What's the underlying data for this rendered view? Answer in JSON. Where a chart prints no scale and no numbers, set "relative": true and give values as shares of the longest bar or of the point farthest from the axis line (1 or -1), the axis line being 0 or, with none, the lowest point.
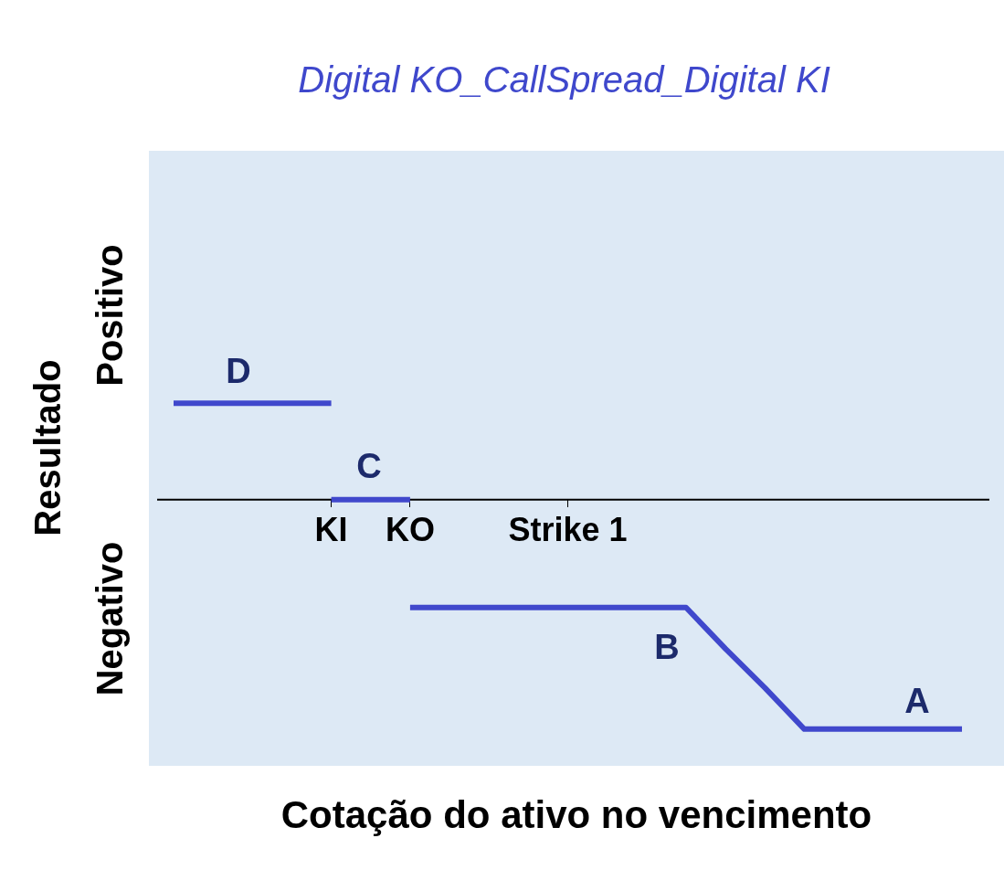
{
  "chart_data": {
    "type": "line",
    "title": "Digital KO_CallSpread_Digital KI",
    "xlabel": "Cotação do ativo no vencimento",
    "ylabel": "Resultado",
    "relative": true,
    "categories": [
      null,
      null,
      null,
      null,
      "KI",
      null,
      "KO",
      null,
      null,
      null,
      "Strike 1",
      null,
      null,
      null,
      null,
      null,
      null,
      null,
      null,
      null,
      null
    ],
    "series": [
      {
        "color": "#4048cc",
        "values": [
          0.42,
          0.42,
          0.42,
          0.42,
          0.42,
          null,
          null,
          null,
          null,
          null,
          null,
          null,
          null,
          null,
          null,
          null,
          null,
          null,
          null,
          null,
          null
        ]
      },
      {
        "color": "#4048cc",
        "values": [
          null,
          null,
          null,
          null,
          0,
          0,
          0,
          null,
          null,
          null,
          null,
          null,
          null,
          null,
          null,
          null,
          null,
          null,
          null,
          null,
          null
        ]
      },
      {
        "color": "#4048cc",
        "values": [
          null,
          null,
          null,
          null,
          null,
          null,
          -0.47,
          -0.47,
          -0.47,
          -0.47,
          -0.47,
          -0.47,
          -0.47,
          -0.47,
          -0.65,
          -0.82,
          -1,
          -1,
          -1,
          -1,
          -1
        ]
      }
    ],
    "annotations": [
      "Positivo",
      "Negativo",
      "D",
      "C",
      "B",
      "A"
    ],
    "grid": false,
    "legend": false,
    "marker": "none",
    "line_style": "solid"
  }
}
